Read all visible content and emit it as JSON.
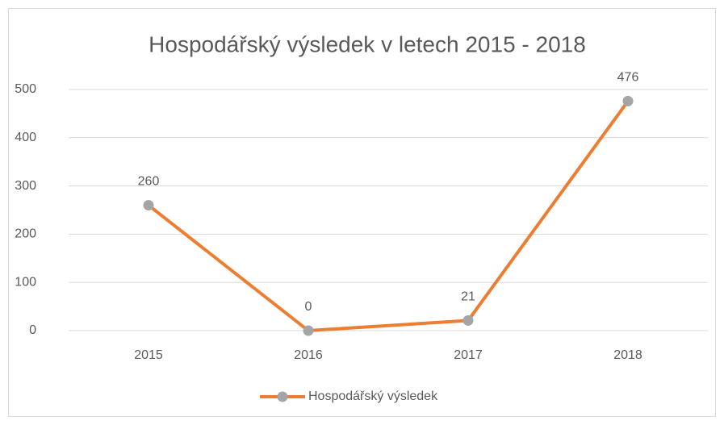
{
  "chart_data": {
    "type": "line",
    "title": "Hospodářský výsledek v letech 2015 - 2018",
    "categories": [
      "2015",
      "2016",
      "2017",
      "2018"
    ],
    "series": [
      {
        "name": "Hospodářský výsledek",
        "color": "#ed7d31",
        "marker_color": "#a5a5a5",
        "values": [
          260,
          0,
          21,
          476
        ]
      }
    ],
    "ylim": [
      0,
      500
    ],
    "yticks": [
      0,
      100,
      200,
      300,
      400,
      500
    ],
    "grid": true,
    "legend": "bottom",
    "data_labels": true
  }
}
